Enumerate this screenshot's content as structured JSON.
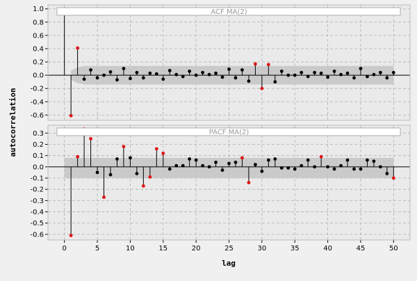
{
  "chart_data": [
    {
      "type": "stem",
      "title": "ACF MA(2)",
      "ylabel": "autocorrelation",
      "xlim": [
        -2.5,
        52.5
      ],
      "ylim": [
        -0.68,
        1.06
      ],
      "yticks": [
        1.0,
        0.8,
        0.6,
        0.4,
        0.2,
        0.0,
        -0.2,
        -0.4,
        -0.6
      ],
      "ytick_labels": [
        "1.0",
        "0.8",
        "0.6",
        "0.4",
        "0.2",
        "0.0",
        "-0.2",
        "-0.4",
        "-0.6"
      ],
      "confidence_band": [
        [
          1,
          -0.07,
          0.07
        ],
        [
          2,
          -0.12,
          0.12
        ],
        [
          3,
          -0.14,
          0.14
        ],
        [
          50,
          -0.14,
          0.14
        ]
      ],
      "lags": [
        0,
        1,
        2,
        3,
        4,
        5,
        6,
        7,
        8,
        9,
        10,
        11,
        12,
        13,
        14,
        15,
        16,
        17,
        18,
        19,
        20,
        21,
        22,
        23,
        24,
        25,
        26,
        27,
        28,
        29,
        30,
        31,
        32,
        33,
        34,
        35,
        36,
        37,
        38,
        39,
        40,
        41,
        42,
        43,
        44,
        45,
        46,
        47,
        48,
        49,
        50
      ],
      "values": [
        1.0,
        -0.61,
        0.41,
        -0.06,
        0.08,
        -0.04,
        0.0,
        0.05,
        -0.07,
        0.1,
        -0.05,
        0.04,
        -0.04,
        0.03,
        0.02,
        -0.06,
        0.07,
        0.01,
        -0.02,
        0.06,
        0.0,
        0.04,
        0.01,
        0.03,
        -0.03,
        0.09,
        -0.04,
        0.08,
        -0.09,
        0.17,
        -0.2,
        0.16,
        -0.1,
        0.06,
        0.0,
        0.0,
        0.04,
        -0.02,
        0.04,
        0.03,
        -0.03,
        0.06,
        0.01,
        0.03,
        -0.04,
        0.1,
        -0.02,
        0.01,
        0.04,
        -0.04,
        0.04
      ],
      "highlighted": [
        0,
        1,
        2,
        29,
        30,
        31
      ],
      "highlighted_faded": [
        0
      ]
    },
    {
      "type": "stem",
      "title": "PACF MA(2)",
      "xlabel": "lag",
      "xlim": [
        -2.5,
        52.5
      ],
      "ylim": [
        -0.65,
        0.37
      ],
      "yticks": [
        0.3,
        0.2,
        0.1,
        0.0,
        -0.1,
        -0.2,
        -0.3,
        -0.4,
        -0.5,
        -0.6
      ],
      "ytick_labels": [
        "0.3",
        "0.2",
        "0.1",
        "0.0",
        "-0.1",
        "-0.2",
        "-0.3",
        "-0.4",
        "-0.5",
        "-0.6"
      ],
      "xticks": [
        0,
        5,
        10,
        15,
        20,
        25,
        30,
        35,
        40,
        45,
        50
      ],
      "xtick_labels": [
        "0",
        "5",
        "10",
        "15",
        "20",
        "25",
        "30",
        "35",
        "40",
        "45",
        "50"
      ],
      "confidence_band": [
        [
          0,
          -0.1,
          0.08
        ],
        [
          50,
          -0.1,
          0.08
        ]
      ],
      "lags": [
        1,
        2,
        3,
        4,
        5,
        6,
        7,
        8,
        9,
        10,
        11,
        12,
        13,
        14,
        15,
        16,
        17,
        18,
        19,
        20,
        21,
        22,
        23,
        24,
        25,
        26,
        27,
        28,
        29,
        30,
        31,
        32,
        33,
        34,
        35,
        36,
        37,
        38,
        39,
        40,
        41,
        42,
        43,
        44,
        45,
        46,
        47,
        48,
        49,
        50
      ],
      "values": [
        -0.61,
        0.09,
        0.34,
        0.25,
        -0.05,
        -0.27,
        -0.07,
        0.07,
        0.18,
        0.08,
        -0.06,
        -0.17,
        -0.09,
        0.16,
        0.12,
        -0.02,
        0.01,
        0.01,
        0.07,
        0.06,
        0.01,
        0.0,
        0.04,
        -0.03,
        0.03,
        0.04,
        0.08,
        -0.14,
        0.02,
        -0.04,
        0.06,
        0.07,
        -0.01,
        -0.01,
        -0.02,
        0.01,
        0.06,
        0.0,
        0.09,
        0.0,
        -0.02,
        0.01,
        0.06,
        -0.02,
        -0.02,
        0.06,
        0.05,
        0.0,
        -0.06,
        -0.1
      ],
      "highlighted": [
        1,
        2,
        3,
        4,
        6,
        9,
        12,
        13,
        14,
        15,
        27,
        28,
        39,
        50
      ],
      "highlighted_faded": [
        3
      ]
    }
  ]
}
